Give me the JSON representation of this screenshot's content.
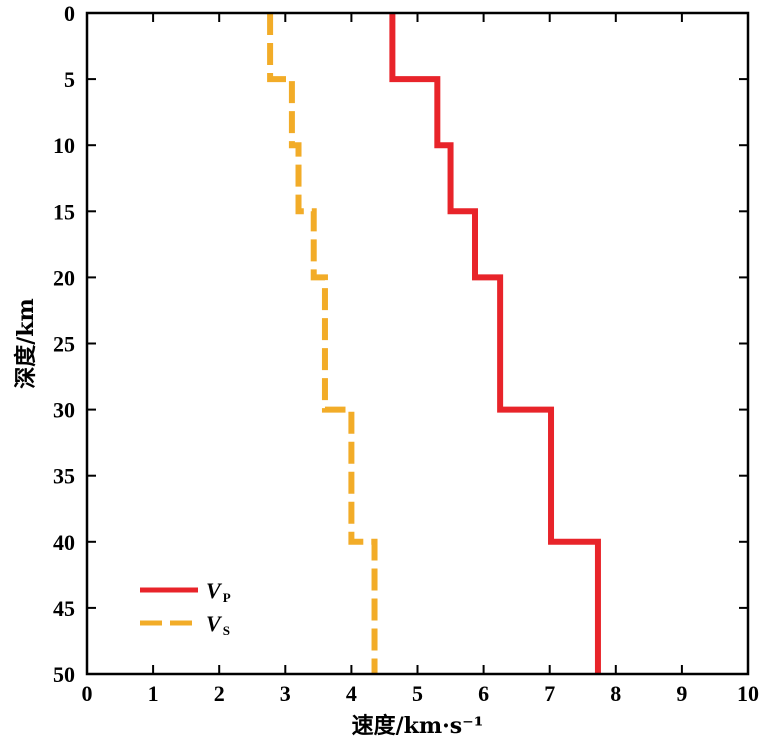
{
  "chart_data": {
    "type": "line",
    "xlabel": "速度/km·s⁻¹",
    "ylabel": "深度/km",
    "xlim": [
      0,
      10
    ],
    "ylim": [
      0,
      50
    ],
    "y_inverted": true,
    "x_ticks": [
      "0",
      "1",
      "2",
      "3",
      "4",
      "5",
      "6",
      "7",
      "8",
      "9",
      "10"
    ],
    "y_ticks": [
      "0",
      "5",
      "10",
      "15",
      "20",
      "25",
      "30",
      "35",
      "40",
      "45",
      "50"
    ],
    "grid": false,
    "legend_position": "bottom-left",
    "series": [
      {
        "name": "V",
        "subscript": "P",
        "color": "#e8242a",
        "dash": "solid",
        "points": [
          {
            "x": 4.62,
            "y": 0
          },
          {
            "x": 4.62,
            "y": 5
          },
          {
            "x": 5.3,
            "y": 5
          },
          {
            "x": 5.3,
            "y": 10
          },
          {
            "x": 5.5,
            "y": 10
          },
          {
            "x": 5.5,
            "y": 15
          },
          {
            "x": 5.87,
            "y": 15
          },
          {
            "x": 5.87,
            "y": 20
          },
          {
            "x": 6.25,
            "y": 20
          },
          {
            "x": 6.25,
            "y": 30
          },
          {
            "x": 7.02,
            "y": 30
          },
          {
            "x": 7.02,
            "y": 40
          },
          {
            "x": 7.73,
            "y": 40
          },
          {
            "x": 7.73,
            "y": 50
          }
        ]
      },
      {
        "name": "V",
        "subscript": "S",
        "color": "#f2ac28",
        "dash": "dashed",
        "points": [
          {
            "x": 2.77,
            "y": 0
          },
          {
            "x": 2.77,
            "y": 5
          },
          {
            "x": 3.1,
            "y": 5
          },
          {
            "x": 3.1,
            "y": 10
          },
          {
            "x": 3.2,
            "y": 10
          },
          {
            "x": 3.2,
            "y": 15
          },
          {
            "x": 3.43,
            "y": 15
          },
          {
            "x": 3.43,
            "y": 20
          },
          {
            "x": 3.6,
            "y": 20
          },
          {
            "x": 3.6,
            "y": 30
          },
          {
            "x": 4.0,
            "y": 30
          },
          {
            "x": 4.0,
            "y": 40
          },
          {
            "x": 4.35,
            "y": 40
          },
          {
            "x": 4.35,
            "y": 50
          }
        ]
      }
    ]
  }
}
